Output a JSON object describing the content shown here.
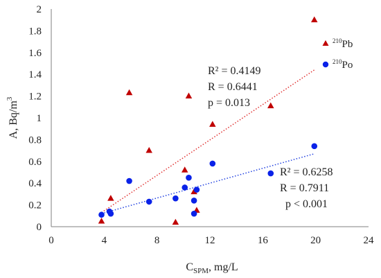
{
  "chart_data": {
    "type": "scatter",
    "xlabel": {
      "main": "C",
      "sub": "SPM",
      "tail": ", mg/L"
    },
    "ylabel": {
      "main": "A, Bq/m",
      "sup": "3"
    },
    "xlim": [
      0,
      24
    ],
    "ylim": [
      0,
      2
    ],
    "xticks": [
      0,
      4,
      8,
      12,
      16,
      20,
      24
    ],
    "yticks": [
      0,
      0.2,
      0.4,
      0.6,
      0.8,
      1,
      1.2,
      1.4,
      1.6,
      1.8,
      2
    ],
    "xtick_labels": [
      "0",
      "4",
      "8",
      "12",
      "16",
      "20",
      "24"
    ],
    "ytick_labels": [
      "0",
      "0.2",
      "0.4",
      "0.6",
      "0.8",
      "1",
      "1.2",
      "1.4",
      "1.6",
      "1.8",
      "2"
    ],
    "grid": false,
    "legend_position": "top-right",
    "series": [
      {
        "name": "Pb",
        "name_sup": "210",
        "marker": "triangle",
        "color": "#c00000",
        "trend_color": "#e03030",
        "points": [
          [
            3.8,
            0.05
          ],
          [
            4.5,
            0.26
          ],
          [
            5.9,
            1.23
          ],
          [
            7.4,
            0.7
          ],
          [
            9.4,
            0.04
          ],
          [
            10.1,
            0.52
          ],
          [
            10.4,
            1.2
          ],
          [
            10.8,
            0.32
          ],
          [
            11.0,
            0.15
          ],
          [
            12.2,
            0.94
          ],
          [
            16.6,
            1.11
          ],
          [
            19.9,
            1.9
          ]
        ],
        "trendline": [
          [
            3.8,
            0.13
          ],
          [
            19.9,
            1.44
          ]
        ],
        "stats": {
          "r2": "R² = 0.4149",
          "r": "R = 0.6441",
          "p": "p = 0.013"
        }
      },
      {
        "name": "Po",
        "name_sup": "210",
        "marker": "circle",
        "color": "#0a22e8",
        "trend_color": "#2040e0",
        "points": [
          [
            3.8,
            0.11
          ],
          [
            4.4,
            0.14
          ],
          [
            4.5,
            0.12
          ],
          [
            5.9,
            0.42
          ],
          [
            7.4,
            0.23
          ],
          [
            9.4,
            0.26
          ],
          [
            10.1,
            0.36
          ],
          [
            10.4,
            0.45
          ],
          [
            10.8,
            0.24
          ],
          [
            10.8,
            0.12
          ],
          [
            11.0,
            0.34
          ],
          [
            12.2,
            0.58
          ],
          [
            16.6,
            0.49
          ],
          [
            19.9,
            0.74
          ]
        ],
        "trendline": [
          [
            3.8,
            0.12
          ],
          [
            19.9,
            0.67
          ]
        ],
        "stats": {
          "r2": "R² = 0.6258",
          "r": "R = 0.7911",
          "p": "p < 0.001"
        }
      }
    ]
  }
}
